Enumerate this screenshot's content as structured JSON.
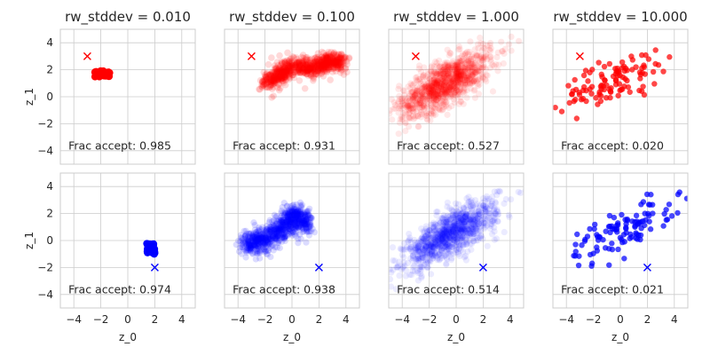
{
  "chart_data": {
    "type": "scatter",
    "seed": 12345,
    "xlim": [
      -5,
      5
    ],
    "ylim": [
      -5,
      5
    ],
    "xticks": [
      -4,
      -2,
      0,
      2,
      4
    ],
    "yticks": [
      -4,
      -2,
      0,
      2,
      4
    ],
    "xlabel": "z_0",
    "ylabel": "z_1",
    "grid": true,
    "frac_label": "Frac accept:",
    "colors": {
      "red": "#ff0000",
      "blue": "#0000ff"
    },
    "panels": [
      {
        "row": 0,
        "col": 0,
        "title": "rw_stddev = 0.010",
        "color": "red",
        "frac_accept": "0.985",
        "start": {
          "x": -3,
          "y": 3
        },
        "cloud": {
          "type": "blob",
          "cx": -1.9,
          "cy": 1.7,
          "sx": 0.55,
          "sy": 0.22,
          "n": 40,
          "marker_radius": 4.2,
          "alpha": 1.0
        }
      },
      {
        "row": 0,
        "col": 1,
        "title": "rw_stddev = 0.100",
        "color": "red",
        "frac_accept": "0.931",
        "start": {
          "x": -3,
          "y": 3
        },
        "cloud": {
          "type": "chain",
          "path": [
            [
              -1.9,
              1.1
            ],
            [
              -1.0,
              1.6
            ],
            [
              0.2,
              2.3
            ],
            [
              1.5,
              2.1
            ],
            [
              2.7,
              2.6
            ],
            [
              3.7,
              2.5
            ]
          ],
          "spread": 0.65,
          "n": 800,
          "marker_radius": 3.8,
          "alpha": 0.15
        }
      },
      {
        "row": 0,
        "col": 2,
        "title": "rw_stddev = 1.000",
        "color": "red",
        "frac_accept": "0.527",
        "start": {
          "x": -3,
          "y": 3
        },
        "cloud": {
          "type": "gaussian",
          "mx": -0.8,
          "my": 1.0,
          "sx": 1.7,
          "sy": 1.2,
          "rho": 0.72,
          "n": 1100,
          "marker_radius": 3.6,
          "alpha": 0.09
        }
      },
      {
        "row": 0,
        "col": 3,
        "title": "rw_stddev = 10.000",
        "color": "red",
        "frac_accept": "0.020",
        "start": {
          "x": -3,
          "y": 3
        },
        "cloud": {
          "type": "gaussian",
          "mx": -0.4,
          "my": 1.3,
          "sx": 1.9,
          "sy": 1.1,
          "rho": 0.7,
          "n": 110,
          "marker_radius": 3.2,
          "alpha": 0.72
        }
      },
      {
        "row": 1,
        "col": 0,
        "title": "",
        "color": "blue",
        "frac_accept": "0.974",
        "start": {
          "x": 2,
          "y": -2
        },
        "cloud": {
          "type": "blob",
          "cx": 1.7,
          "cy": -0.6,
          "sx": 0.3,
          "sy": 0.4,
          "n": 40,
          "marker_radius": 4.2,
          "alpha": 1.0
        }
      },
      {
        "row": 1,
        "col": 1,
        "title": "",
        "color": "blue",
        "frac_accept": "0.938",
        "start": {
          "x": 2,
          "y": -2
        },
        "cloud": {
          "type": "chain",
          "path": [
            [
              -3.5,
              -0.3
            ],
            [
              -2.2,
              0.0
            ],
            [
              -0.8,
              0.8
            ],
            [
              0.3,
              2.0
            ],
            [
              1.0,
              0.9
            ]
          ],
          "spread": 0.75,
          "n": 900,
          "marker_radius": 3.6,
          "alpha": 0.14
        }
      },
      {
        "row": 1,
        "col": 2,
        "title": "",
        "color": "blue",
        "frac_accept": "0.514",
        "start": {
          "x": 2,
          "y": -2
        },
        "cloud": {
          "type": "gaussian",
          "mx": -0.4,
          "my": 0.5,
          "sx": 1.7,
          "sy": 1.2,
          "rho": 0.75,
          "n": 1100,
          "marker_radius": 3.6,
          "alpha": 0.08
        }
      },
      {
        "row": 1,
        "col": 3,
        "title": "",
        "color": "blue",
        "frac_accept": "0.021",
        "start": {
          "x": 2,
          "y": -2
        },
        "cloud": {
          "type": "gaussian",
          "mx": 0.0,
          "my": 0.7,
          "sx": 2.0,
          "sy": 1.2,
          "rho": 0.75,
          "n": 110,
          "marker_radius": 3.2,
          "alpha": 0.72
        }
      }
    ]
  }
}
